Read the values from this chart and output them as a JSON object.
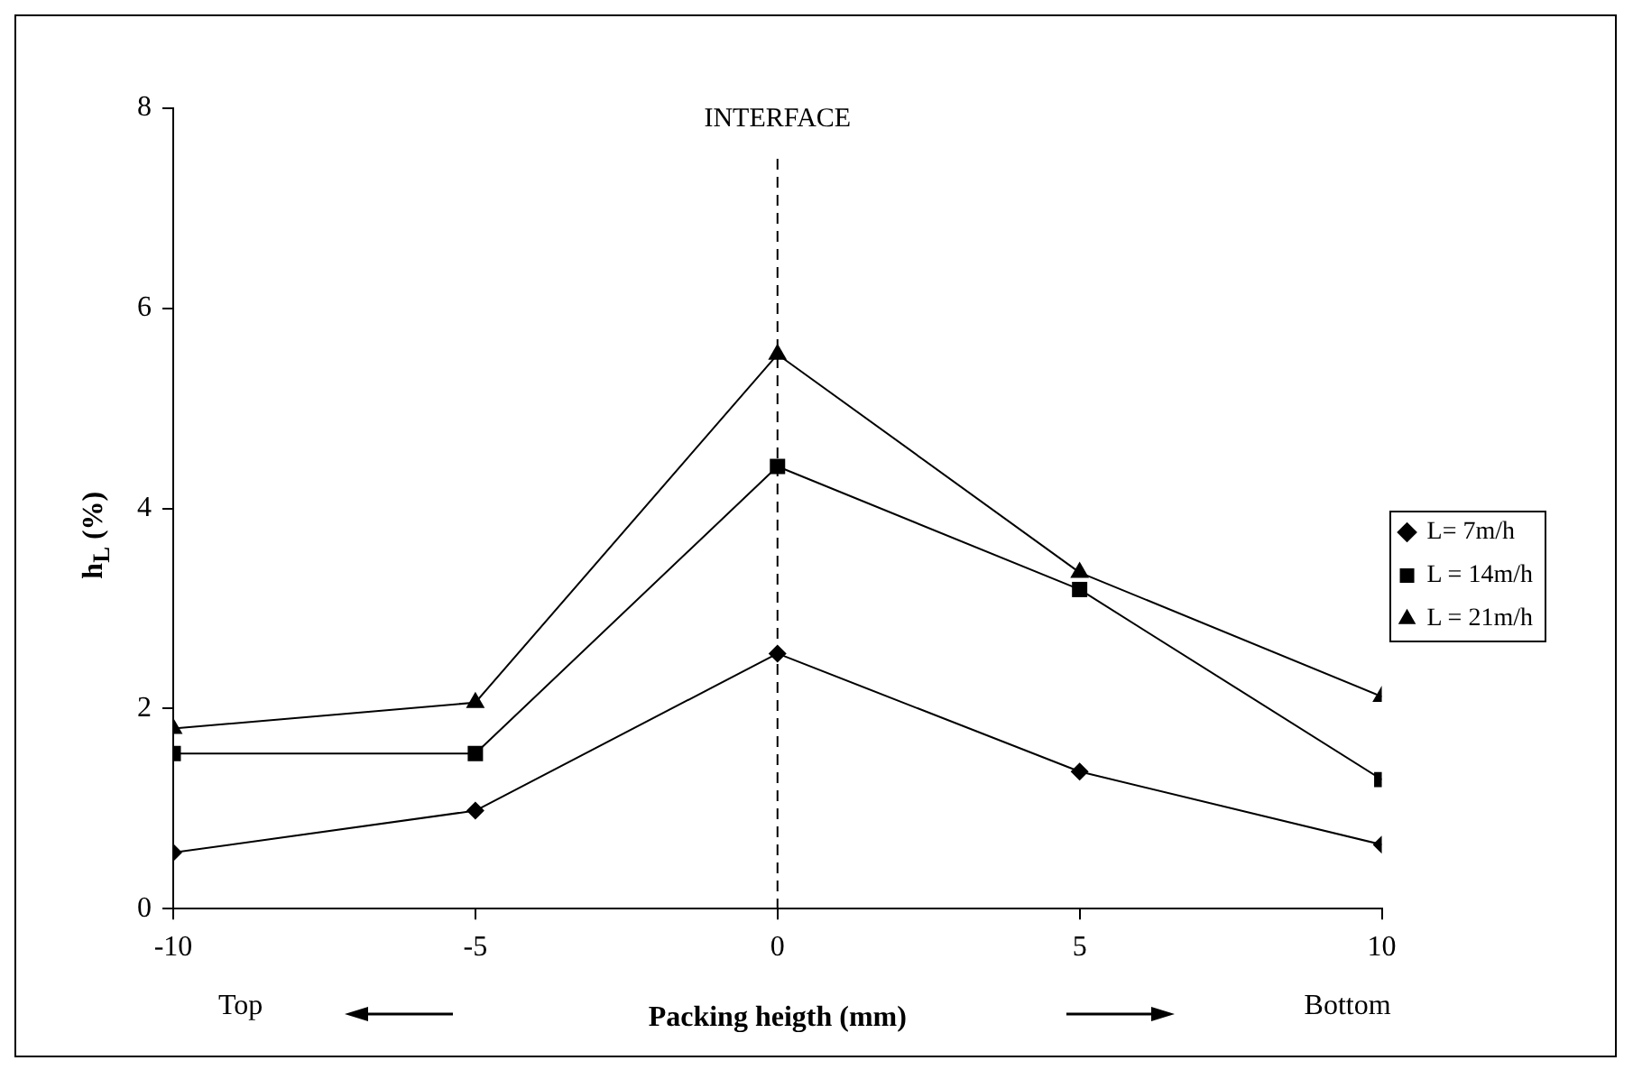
{
  "chart_data": {
    "type": "line",
    "xlabel": "Packing heigth (mm)",
    "ylabel": "h$_{L}$ (%)",
    "x": [
      -10,
      -5,
      0,
      5,
      10
    ],
    "series": [
      {
        "name": "L= 7m/h",
        "color": "#000000",
        "marker": "diamond",
        "values": [
          0.56,
          0.98,
          2.55,
          1.37,
          0.64
        ]
      },
      {
        "name": "L = 14m/h",
        "color": "#000000",
        "marker": "square",
        "values": [
          1.55,
          1.55,
          4.42,
          3.19,
          1.29
        ]
      },
      {
        "name": "L = 21m/h",
        "color": "#000000",
        "marker": "triangle",
        "values": [
          1.8,
          2.06,
          5.54,
          3.36,
          2.12
        ]
      }
    ],
    "xlim": [
      -10,
      10
    ],
    "xticks": [
      -10,
      -5,
      0,
      5,
      10
    ],
    "ylim": [
      0,
      8
    ],
    "yticks": [
      0,
      2,
      4,
      6,
      8
    ],
    "grid": false,
    "legend": "right",
    "line_style": "solid",
    "ref_lines": [
      {
        "axis": "x",
        "value": 0,
        "label": "INTERFACE",
        "color": "#000000",
        "line_style": "dashed"
      }
    ],
    "annotations": [
      "Top",
      "Bottom"
    ]
  }
}
